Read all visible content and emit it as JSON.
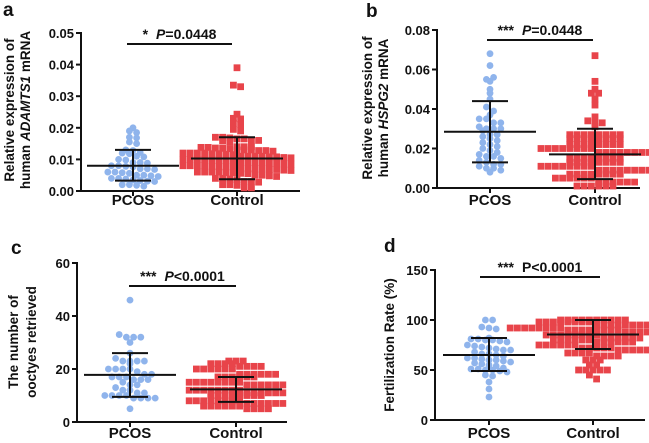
{
  "colors": {
    "pcos": "#8fb4ec",
    "control": "#e8444a",
    "axis": "#111111"
  },
  "chart_data": [
    {
      "type": "scatter",
      "panel_letter": "a",
      "ylabel_lines": [
        "Relative expression of",
        "human ",
        "ADAMTS1",
        " mRNA"
      ],
      "categories": [
        "PCOS",
        "Control"
      ],
      "ylim": [
        0,
        0.05
      ],
      "yticks": [
        "0.00",
        "0.01",
        "0.02",
        "0.03",
        "0.04",
        "0.05"
      ],
      "significance": {
        "stars": "*",
        "p_label": "P",
        "p_value": "=0.0448",
        "p_italic": true
      },
      "series": [
        {
          "category": "PCOS",
          "marker": "circle",
          "mean": 0.008,
          "sd_low": 0.0033,
          "sd_high": 0.013,
          "values": [
            0.02,
            0.019,
            0.0185,
            0.017,
            0.0168,
            0.0155,
            0.015,
            0.013,
            0.0128,
            0.0122,
            0.012,
            0.0118,
            0.011,
            0.0108,
            0.01,
            0.0098,
            0.009,
            0.009,
            0.0088,
            0.008,
            0.008,
            0.0078,
            0.0076,
            0.007,
            0.007,
            0.0068,
            0.006,
            0.006,
            0.0058,
            0.0056,
            0.005,
            0.005,
            0.0048,
            0.0046,
            0.004,
            0.004,
            0.0038,
            0.0035,
            0.0033,
            0.0031,
            0.003,
            0.002,
            0.002,
            0.0018,
            0.0015
          ]
        },
        {
          "category": "Control",
          "marker": "square",
          "mean": 0.0103,
          "sd_low": 0.0037,
          "sd_high": 0.017,
          "values": [
            0.039,
            0.0335,
            0.033,
            0.0243,
            0.023,
            0.0228,
            0.0215,
            0.021,
            0.0195,
            0.019,
            0.017,
            0.017,
            0.0168,
            0.0165,
            0.0165,
            0.016,
            0.016,
            0.0158,
            0.0155,
            0.014,
            0.014,
            0.014,
            0.0138,
            0.0138,
            0.0136,
            0.0135,
            0.0134,
            0.013,
            0.013,
            0.013,
            0.0128,
            0.0128,
            0.0126,
            0.012,
            0.012,
            0.012,
            0.012,
            0.0118,
            0.0118,
            0.0116,
            0.0115,
            0.011,
            0.011,
            0.011,
            0.011,
            0.0108,
            0.0108,
            0.0106,
            0.0105,
            0.01,
            0.01,
            0.01,
            0.01,
            0.0098,
            0.0098,
            0.0096,
            0.0095,
            0.009,
            0.009,
            0.009,
            0.009,
            0.0088,
            0.0088,
            0.0086,
            0.0085,
            0.008,
            0.008,
            0.008,
            0.008,
            0.0078,
            0.0078,
            0.0076,
            0.0075,
            0.007,
            0.007,
            0.007,
            0.007,
            0.0068,
            0.0068,
            0.0066,
            0.0065,
            0.006,
            0.006,
            0.006,
            0.006,
            0.0058,
            0.0058,
            0.0056,
            0.0055,
            0.005,
            0.005,
            0.0048,
            0.0046,
            0.004,
            0.004,
            0.0038,
            0.0036,
            0.003,
            0.003,
            0.0028,
            0.002,
            0.002,
            0.0018,
            0.001,
            0.001
          ]
        }
      ]
    },
    {
      "type": "scatter",
      "panel_letter": "b",
      "ylabel_lines": [
        "Relative expression of",
        "human ",
        "HSPG2",
        " mRNA"
      ],
      "categories": [
        "PCOS",
        "Control"
      ],
      "ylim": [
        0,
        0.08
      ],
      "yticks": [
        "0.00",
        "0.02",
        "0.04",
        "0.06",
        "0.08"
      ],
      "significance": {
        "stars": "***",
        "p_label": "P",
        "p_value": "=0.0448",
        "p_italic": true
      },
      "series": [
        {
          "category": "PCOS",
          "marker": "circle",
          "mean": 0.0285,
          "sd_low": 0.013,
          "sd_high": 0.044,
          "values": [
            0.068,
            0.062,
            0.055,
            0.054,
            0.056,
            0.05,
            0.048,
            0.045,
            0.041,
            0.039,
            0.037,
            0.035,
            0.035,
            0.033,
            0.033,
            0.031,
            0.03,
            0.03,
            0.03,
            0.029,
            0.027,
            0.027,
            0.026,
            0.025,
            0.024,
            0.023,
            0.022,
            0.021,
            0.02,
            0.019,
            0.018,
            0.017,
            0.016,
            0.016,
            0.015,
            0.014,
            0.013,
            0.012,
            0.012,
            0.011,
            0.01,
            0.01,
            0.009,
            0.008
          ]
        },
        {
          "category": "Control",
          "marker": "square",
          "mean": 0.017,
          "sd_low": 0.0045,
          "sd_high": 0.03,
          "values": [
            0.067,
            0.054,
            0.05,
            0.048,
            0.048,
            0.045,
            0.042,
            0.036,
            0.034,
            0.033,
            0.033,
            0.031,
            0.027,
            0.027,
            0.027,
            0.027,
            0.027,
            0.027,
            0.027,
            0.027,
            0.025,
            0.025,
            0.025,
            0.025,
            0.025,
            0.025,
            0.025,
            0.025,
            0.022,
            0.022,
            0.022,
            0.022,
            0.022,
            0.022,
            0.022,
            0.022,
            0.02,
            0.02,
            0.02,
            0.02,
            0.02,
            0.02,
            0.02,
            0.02,
            0.018,
            0.018,
            0.018,
            0.018,
            0.018,
            0.018,
            0.018,
            0.018,
            0.015,
            0.015,
            0.015,
            0.015,
            0.015,
            0.015,
            0.015,
            0.015,
            0.013,
            0.013,
            0.013,
            0.013,
            0.013,
            0.013,
            0.013,
            0.013,
            0.011,
            0.011,
            0.011,
            0.011,
            0.011,
            0.011,
            0.011,
            0.011,
            0.009,
            0.009,
            0.009,
            0.009,
            0.009,
            0.009,
            0.009,
            0.009,
            0.007,
            0.007,
            0.007,
            0.007,
            0.007,
            0.007,
            0.007,
            0.007,
            0.005,
            0.005,
            0.005,
            0.005,
            0.005,
            0.005,
            0.003,
            0.003,
            0.003,
            0.003,
            0.003,
            0.003,
            0.001,
            0.001,
            0.001,
            0.001,
            0.001,
            0.001
          ]
        }
      ]
    },
    {
      "type": "scatter",
      "panel_letter": "c",
      "ylabel_lines": [
        "The number of",
        "ooctyes retrieved"
      ],
      "categories": [
        "PCOS",
        "Control"
      ],
      "ylim": [
        0,
        60
      ],
      "yticks": [
        "0",
        "20",
        "40",
        "60"
      ],
      "significance": {
        "stars": "***",
        "p_label": "P",
        "p_value": "<0.0001",
        "p_italic": true
      },
      "series": [
        {
          "category": "PCOS",
          "marker": "circle",
          "mean": 17.8,
          "sd_low": 9.5,
          "sd_high": 26,
          "values": [
            46,
            33,
            32,
            32,
            32,
            30,
            26,
            24,
            23,
            23,
            23,
            23,
            22,
            20,
            20,
            20,
            20,
            19,
            18,
            18,
            17,
            17,
            17,
            16,
            16,
            16,
            15,
            14,
            14,
            13,
            12,
            12,
            11,
            11,
            10,
            10,
            10,
            10,
            9,
            9,
            9,
            9,
            5
          ]
        },
        {
          "category": "Control",
          "marker": "square",
          "mean": 12.3,
          "sd_low": 7.6,
          "sd_high": 17,
          "values": [
            23,
            23,
            23,
            22,
            22,
            22,
            22,
            21,
            21,
            21,
            21,
            20,
            20,
            20,
            20,
            20,
            20,
            18,
            18,
            18,
            18,
            18,
            18,
            17,
            17,
            17,
            17,
            17,
            17,
            15,
            15,
            15,
            15,
            15,
            15,
            15,
            15,
            14,
            14,
            14,
            14,
            14,
            14,
            12,
            12,
            12,
            12,
            12,
            12,
            12,
            12,
            11,
            11,
            11,
            11,
            11,
            11,
            10,
            10,
            10,
            10,
            10,
            10,
            10,
            10,
            8,
            8,
            8,
            8,
            8,
            8,
            8,
            8,
            7,
            7,
            7,
            7,
            7,
            7,
            6,
            6,
            6,
            6,
            6,
            6,
            5,
            5,
            5,
            5
          ]
        }
      ]
    },
    {
      "type": "scatter",
      "panel_letter": "d",
      "ylabel_lines": [
        "Fertilization Rate (%)"
      ],
      "categories": [
        "PCOS",
        "Control"
      ],
      "ylim": [
        0,
        150
      ],
      "yticks": [
        "0",
        "50",
        "100",
        "150"
      ],
      "significance": {
        "stars": "***",
        "p_label": "P",
        "p_value": "<0.0001",
        "p_italic": false
      },
      "series": [
        {
          "category": "PCOS",
          "marker": "circle",
          "mean": 65,
          "sd_low": 49,
          "sd_high": 82,
          "values": [
            100,
            100,
            93,
            92,
            91,
            82,
            81,
            81,
            80,
            80,
            79,
            78,
            75,
            74,
            73,
            72,
            71,
            70,
            70,
            68,
            66,
            66,
            65,
            64,
            62,
            62,
            61,
            60,
            60,
            59,
            58,
            57,
            56,
            55,
            54,
            52,
            51,
            51,
            50,
            50,
            49,
            48,
            45,
            44,
            38,
            31,
            23
          ]
        },
        {
          "category": "Control",
          "marker": "square",
          "mean": 85.5,
          "sd_low": 71,
          "sd_high": 100,
          "values": [
            100,
            100,
            100,
            100,
            100,
            100,
            100,
            100,
            100,
            100,
            98,
            98,
            98,
            98,
            98,
            98,
            98,
            98,
            95,
            95,
            95,
            95,
            95,
            95,
            95,
            95,
            92,
            92,
            92,
            92,
            92,
            92,
            92,
            92,
            90,
            90,
            90,
            90,
            90,
            90,
            90,
            90,
            88,
            88,
            88,
            88,
            88,
            88,
            88,
            88,
            85,
            85,
            85,
            85,
            85,
            85,
            85,
            85,
            82,
            82,
            82,
            82,
            82,
            82,
            80,
            80,
            80,
            80,
            80,
            80,
            78,
            78,
            78,
            78,
            78,
            78,
            75,
            75,
            75,
            75,
            75,
            75,
            72,
            72,
            72,
            72,
            72,
            70,
            70,
            70,
            70,
            70,
            67,
            67,
            67,
            67,
            64,
            64,
            64,
            64,
            60,
            60,
            60,
            55,
            55,
            50,
            50,
            50,
            50,
            50,
            45,
            41
          ]
        }
      ]
    }
  ]
}
